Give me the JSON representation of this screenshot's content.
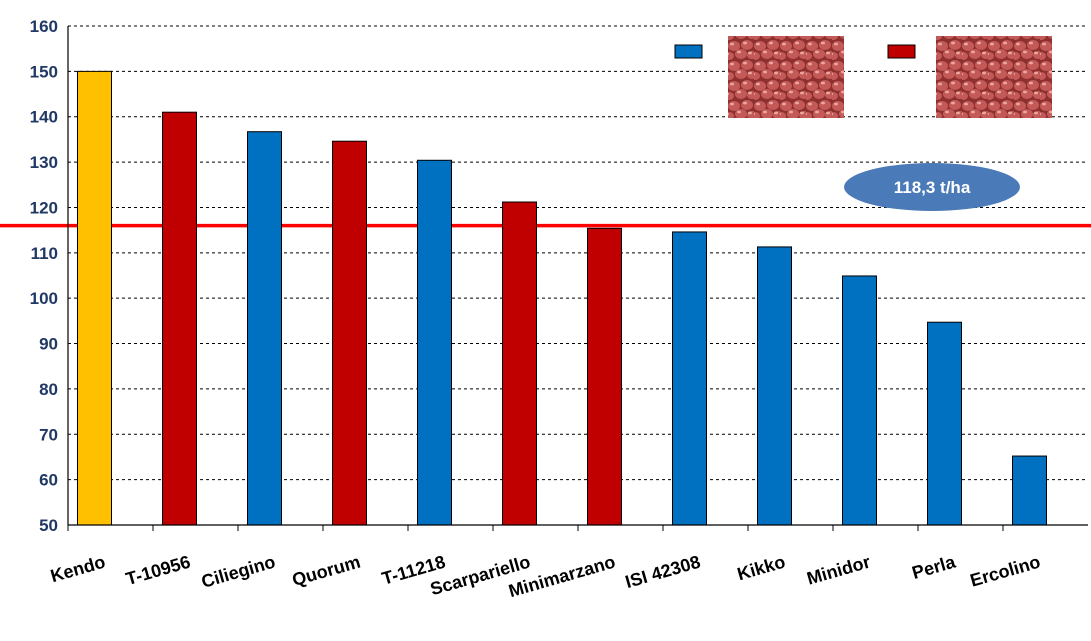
{
  "chart_data": {
    "type": "bar",
    "title": "",
    "xlabel": "",
    "ylabel": "",
    "ylim": [
      50,
      160
    ],
    "yticks": [
      50,
      60,
      70,
      80,
      90,
      100,
      110,
      120,
      130,
      140,
      150,
      160
    ],
    "grid": true,
    "categories": [
      "Kendo",
      "T-10956",
      "Ciliegino",
      "Quorum",
      "T-11218",
      "Scarpariello",
      "Minimarzano",
      "ISI 42308",
      "Kikko",
      "Minidor",
      "Perla",
      "Ercolino"
    ],
    "values": [
      150,
      141,
      136.7,
      134.6,
      130.4,
      121.2,
      115.4,
      114.6,
      111.3,
      104.9,
      94.7,
      65.2
    ],
    "bar_colors": [
      "#ffc000",
      "#c00000",
      "#0070c0",
      "#c00000",
      "#0070c0",
      "#c00000",
      "#c00000",
      "#0070c0",
      "#0070c0",
      "#0070c0",
      "#0070c0",
      "#0070c0"
    ],
    "reference_line": {
      "value": 116,
      "color": "#ff0000"
    },
    "annotation": {
      "text": "118,3 t/ha",
      "color": "#4a7ab7"
    },
    "legend": {
      "position": "top-right",
      "entries": [
        {
          "color": "#0070c0",
          "name": ""
        },
        {
          "color": "#c00000",
          "name": ""
        }
      ]
    }
  }
}
